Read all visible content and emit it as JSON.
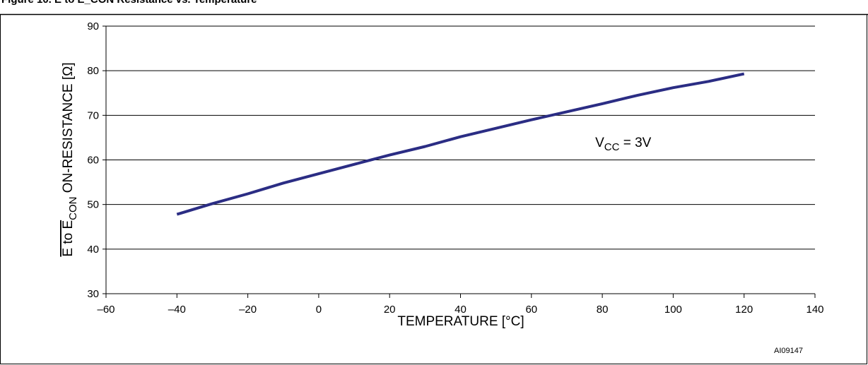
{
  "figure": {
    "title": "Figure 10. E to E_CON Resistance vs. Temperature",
    "code": "AI09147"
  },
  "chart_data": {
    "type": "line",
    "title": "",
    "xlabel": "TEMPERATURE [°C]",
    "ylabel": {
      "prefix": "E",
      "mid": " to E",
      "sub": "CON",
      "suffix": " ON-RESISTANCE [Ω]"
    },
    "xlim": [
      -60,
      140
    ],
    "ylim": [
      30,
      90
    ],
    "xticks": [
      -60,
      -40,
      -20,
      0,
      20,
      40,
      60,
      80,
      100,
      120,
      140
    ],
    "xtick_labels": [
      "–60",
      "–40",
      "–20",
      "0",
      "20",
      "40",
      "60",
      "80",
      "100",
      "120",
      "140"
    ],
    "yticks": [
      30,
      40,
      50,
      60,
      70,
      80,
      90
    ],
    "ytick_labels": [
      "30",
      "40",
      "50",
      "60",
      "70",
      "80",
      "90"
    ],
    "grid": "horizontal",
    "series": [
      {
        "name": "",
        "color": "#2b2d84",
        "x": [
          -40,
          -30,
          -20,
          -10,
          0,
          10,
          20,
          30,
          40,
          50,
          60,
          70,
          80,
          90,
          100,
          110,
          120
        ],
        "y": [
          47.8,
          50.2,
          52.4,
          54.8,
          56.9,
          59.0,
          61.1,
          63.0,
          65.2,
          67.1,
          69.0,
          70.8,
          72.6,
          74.5,
          76.2,
          77.6,
          79.3
        ]
      }
    ],
    "annotation": {
      "main": "V",
      "sub": "CC",
      "rest": " = 3V",
      "x": 78,
      "y": 64
    }
  }
}
